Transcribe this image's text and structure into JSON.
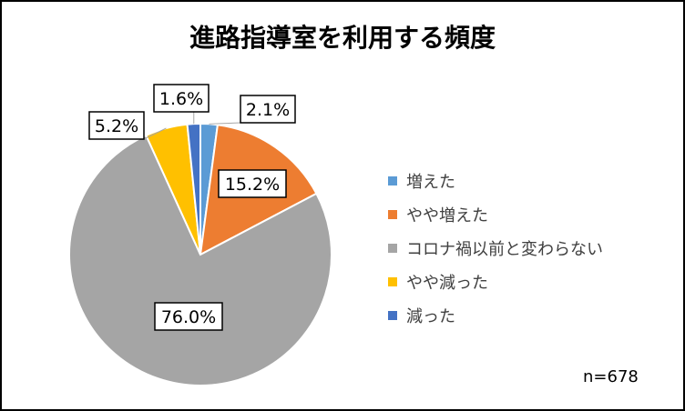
{
  "chart_data": {
    "type": "pie",
    "title": "進路指導室を利用する頻度",
    "categories": [
      "増えた",
      "やや増えた",
      "コロナ禍以前と変わらない",
      "やや減った",
      "減った"
    ],
    "values": [
      2.1,
      15.2,
      76.0,
      5.2,
      1.6
    ],
    "data_labels": [
      "2.1%",
      "15.2%",
      "76.0%",
      "5.2%",
      "1.6%"
    ],
    "colors": [
      "#5B9BD5",
      "#ED7D31",
      "#A5A5A5",
      "#FFC000",
      "#4472C4"
    ],
    "legend_position": "right",
    "start_angle": "12 o'clock, clockwise"
  },
  "footnote": "n=678"
}
